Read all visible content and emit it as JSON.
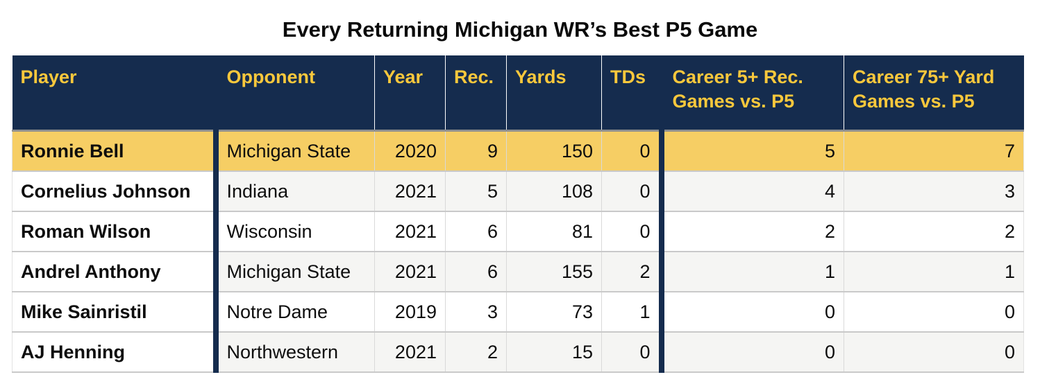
{
  "title": "Every Returning Michigan WR’s Best P5 Game",
  "colors": {
    "header_navy": "#152C4E",
    "header_maize_text": "#FAC83C",
    "highlight_row_yellow": "#F6CE64",
    "banded_row_gray": "#F5F5F3",
    "row_white": "#FFFFFF",
    "title_text": "#0A0A0A"
  },
  "table": {
    "columns": [
      {
        "id": "player",
        "label": "Player",
        "align": "left"
      },
      {
        "id": "opponent",
        "label": "Opponent",
        "align": "left"
      },
      {
        "id": "year",
        "label": "Year",
        "align": "right"
      },
      {
        "id": "rec",
        "label": "Rec.",
        "align": "right"
      },
      {
        "id": "yards",
        "label": "Yards",
        "align": "right"
      },
      {
        "id": "tds",
        "label": "TDs",
        "align": "right"
      },
      {
        "id": "career5",
        "label": "Career 5+ Rec. Games vs. P5",
        "align": "right"
      },
      {
        "id": "career75",
        "label": "Career 75+ Yard Games vs. P5",
        "align": "right"
      }
    ],
    "rows": [
      {
        "player": "Ronnie Bell",
        "opponent": "Michigan State",
        "year": "2020",
        "rec": "9",
        "yards": "150",
        "tds": "0",
        "career5": "5",
        "career75": "7",
        "highlight": true
      },
      {
        "player": "Cornelius Johnson",
        "opponent": "Indiana",
        "year": "2021",
        "rec": "5",
        "yards": "108",
        "tds": "0",
        "career5": "4",
        "career75": "3",
        "highlight": false
      },
      {
        "player": "Roman Wilson",
        "opponent": "Wisconsin",
        "year": "2021",
        "rec": "6",
        "yards": "81",
        "tds": "0",
        "career5": "2",
        "career75": "2",
        "highlight": false
      },
      {
        "player": "Andrel Anthony",
        "opponent": "Michigan State",
        "year": "2021",
        "rec": "6",
        "yards": "155",
        "tds": "2",
        "career5": "1",
        "career75": "1",
        "highlight": false
      },
      {
        "player": "Mike Sainristil",
        "opponent": "Notre Dame",
        "year": "2019",
        "rec": "3",
        "yards": "73",
        "tds": "1",
        "career5": "0",
        "career75": "0",
        "highlight": false
      },
      {
        "player": "AJ Henning",
        "opponent": "Northwestern",
        "year": "2021",
        "rec": "2",
        "yards": "15",
        "tds": "0",
        "career5": "0",
        "career75": "0",
        "highlight": false
      }
    ]
  },
  "chart_data": {
    "type": "table",
    "title": "Every Returning Michigan WR’s Best P5 Game",
    "columns": [
      "Player",
      "Opponent",
      "Year",
      "Rec.",
      "Yards",
      "TDs",
      "Career 5+ Rec. Games vs. P5",
      "Career 75+ Yard Games vs. P5"
    ],
    "rows": [
      [
        "Ronnie Bell",
        "Michigan State",
        2020,
        9,
        150,
        0,
        5,
        7
      ],
      [
        "Cornelius Johnson",
        "Indiana",
        2021,
        5,
        108,
        0,
        4,
        3
      ],
      [
        "Roman Wilson",
        "Wisconsin",
        2021,
        6,
        81,
        0,
        2,
        2
      ],
      [
        "Andrel Anthony",
        "Michigan State",
        2021,
        6,
        155,
        2,
        1,
        1
      ],
      [
        "Mike Sainristil",
        "Notre Dame",
        2019,
        3,
        73,
        1,
        0,
        0
      ],
      [
        "AJ Henning",
        "Northwestern",
        2021,
        2,
        15,
        0,
        0,
        0
      ]
    ],
    "highlighted_row": "Ronnie Bell",
    "layout": {
      "header_style": "navy-with-maize-text",
      "banding": "alternating gray/white except white player column",
      "thick_navy_dividers_after": [
        "Player",
        "TDs"
      ]
    }
  }
}
